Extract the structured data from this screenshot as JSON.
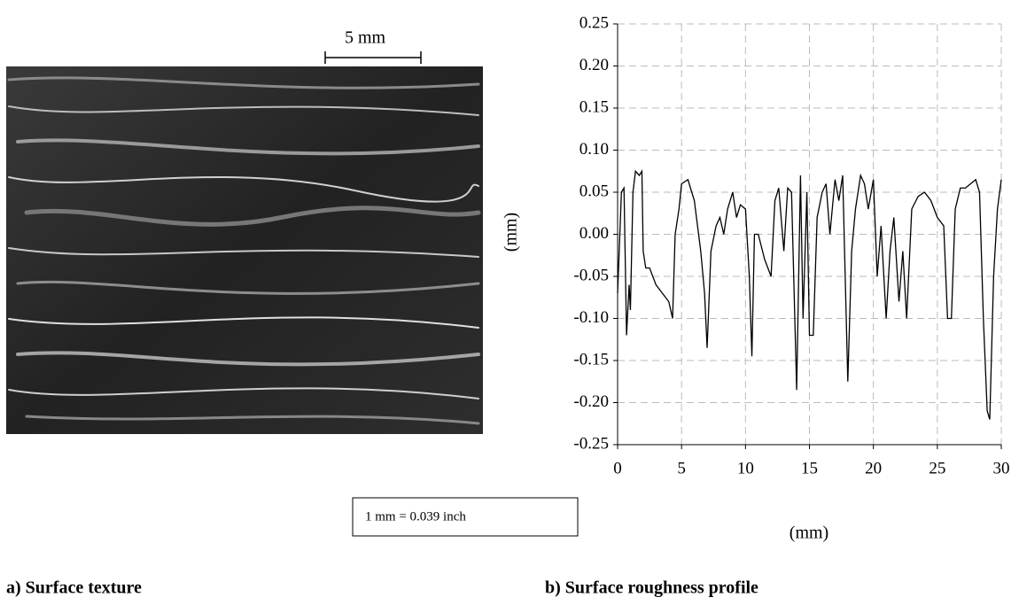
{
  "figure": {
    "scale_bar": "5 mm",
    "conversion": "1 mm = 0.039 inch",
    "caption_a": "a) Surface texture",
    "caption_b": "b) Surface roughness profile"
  },
  "chart_data": {
    "type": "line",
    "x_label": "(mm)",
    "y_label": "(mm)",
    "x": [
      0,
      0.3,
      0.5,
      0.7,
      0.9,
      1.0,
      1.2,
      1.4,
      1.7,
      1.9,
      2.0,
      2.2,
      2.5,
      3.0,
      3.5,
      4.0,
      4.3,
      4.5,
      4.8,
      5.0,
      5.5,
      6.0,
      6.5,
      6.8,
      7.0,
      7.3,
      7.7,
      8.0,
      8.3,
      8.6,
      9.0,
      9.3,
      9.6,
      10.0,
      10.3,
      10.5,
      10.7,
      11.0,
      11.5,
      12.0,
      12.3,
      12.6,
      13.0,
      13.3,
      13.6,
      14.0,
      14.3,
      14.5,
      14.8,
      15.0,
      15.3,
      15.6,
      16.0,
      16.3,
      16.6,
      17.0,
      17.3,
      17.6,
      18.0,
      18.3,
      18.6,
      19.0,
      19.3,
      19.6,
      20.0,
      20.3,
      20.6,
      21.0,
      21.3,
      21.6,
      22.0,
      22.3,
      22.6,
      23.0,
      23.5,
      24.0,
      24.5,
      25.0,
      25.5,
      25.8,
      26.1,
      26.4,
      26.8,
      27.2,
      27.6,
      28.0,
      28.3,
      28.6,
      28.9,
      29.1,
      29.4,
      29.7,
      30.0
    ],
    "series": [
      {
        "color": "#000000",
        "values": [
          -0.07,
          0.05,
          0.055,
          -0.12,
          -0.06,
          -0.09,
          0.05,
          0.075,
          0.07,
          0.075,
          -0.02,
          -0.04,
          -0.04,
          -0.06,
          -0.07,
          -0.08,
          -0.1,
          0.0,
          0.03,
          0.06,
          0.065,
          0.04,
          -0.02,
          -0.07,
          -0.135,
          -0.02,
          0.01,
          0.02,
          0.0,
          0.03,
          0.05,
          0.02,
          0.035,
          0.03,
          -0.05,
          -0.145,
          0.0,
          0.0,
          -0.03,
          -0.05,
          0.04,
          0.055,
          -0.02,
          0.055,
          0.05,
          -0.185,
          0.07,
          -0.1,
          0.05,
          -0.12,
          -0.12,
          0.02,
          0.05,
          0.06,
          0.0,
          0.065,
          0.04,
          0.07,
          -0.175,
          -0.02,
          0.03,
          0.07,
          0.06,
          0.03,
          0.065,
          -0.05,
          0.01,
          -0.1,
          -0.02,
          0.02,
          -0.08,
          -0.02,
          -0.1,
          0.03,
          0.045,
          0.05,
          0.04,
          0.02,
          0.01,
          -0.1,
          -0.1,
          0.03,
          0.055,
          0.055,
          0.06,
          0.065,
          0.05,
          -0.1,
          -0.21,
          -0.22,
          -0.05,
          0.03,
          0.065
        ]
      }
    ],
    "xlim": [
      0,
      30
    ],
    "ylim": [
      -0.25,
      0.25
    ],
    "xticks": [
      0,
      5,
      10,
      15,
      20,
      25,
      30
    ],
    "yticks": [
      0.25,
      {
        "value": 0.2,
        "label": "0.20"
      },
      0.15,
      {
        "value": 0.1,
        "label": "0.10"
      },
      0.05,
      {
        "value": 0,
        "label": "0.00"
      },
      -0.05,
      {
        "value": -0.1,
        "label": "-0.10"
      },
      -0.15,
      {
        "value": -0.2,
        "label": "-0.20"
      },
      -0.25
    ],
    "grid": true
  }
}
